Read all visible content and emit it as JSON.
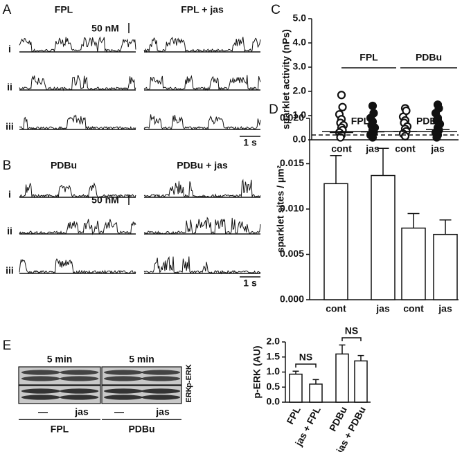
{
  "figure": {
    "traces": [
      {
        "panel": "A",
        "titles": [
          "FPL",
          "FPL + jas"
        ],
        "scale_label": "50 nM",
        "rows": [
          "i",
          "ii",
          "iii"
        ],
        "time_label": "1 s"
      },
      {
        "panel": "B",
        "titles": [
          "PDBu",
          "PDBu + jas"
        ],
        "scale_label": "50 nM",
        "rows": [
          "i",
          "ii",
          "iii"
        ],
        "time_label": "1 s"
      }
    ],
    "blot": {
      "panel": "E",
      "time_labels": [
        "5 min",
        "5 min"
      ],
      "bands": [
        "p-ERK",
        "ERK"
      ],
      "lanes": [
        "—",
        "jas",
        "—",
        "jas"
      ],
      "groups": [
        "FPL",
        "PDBu"
      ]
    }
  },
  "chart_data": [
    {
      "panel": "C",
      "type": "scatter",
      "ylabel": "sparklet activity (nPs)",
      "categories": [
        "cont",
        "jas",
        "cont",
        "jas"
      ],
      "groups": [
        "FPL",
        "PDBu"
      ],
      "filled": [
        false,
        true,
        false,
        true
      ],
      "points": [
        [
          1.85,
          1.35,
          1.05,
          0.85,
          0.7,
          0.6,
          0.5,
          0.4,
          0.3,
          0.2,
          0.1
        ],
        [
          1.4,
          1.1,
          0.9,
          0.75,
          0.6,
          0.5,
          0.4,
          0.3,
          0.2,
          0.1
        ],
        [
          1.3,
          1.2,
          0.95,
          0.8,
          0.7,
          0.55,
          0.45,
          0.35,
          0.25,
          0.15
        ],
        [
          1.45,
          1.3,
          1.1,
          0.9,
          0.8,
          0.65,
          0.5,
          0.4,
          0.3,
          0.2,
          0.1
        ]
      ],
      "means": [
        0.3,
        0.33,
        0.35,
        0.42
      ],
      "threshold": 0.2,
      "ylim": [
        0,
        5
      ],
      "yticks": [
        {
          "value": 0,
          "label": "0.0"
        },
        {
          "value": 1,
          "label": "1.0"
        },
        {
          "value": 2,
          "label": "2.0"
        },
        {
          "value": 3,
          "label": "3.0"
        },
        {
          "value": 4,
          "label": "4.0"
        },
        {
          "value": 5,
          "label": "5.0"
        }
      ]
    },
    {
      "panel": "D",
      "type": "bar",
      "ylabel": "sparklet sites / µm²",
      "categories": [
        "cont",
        "jas",
        "cont",
        "jas"
      ],
      "groups": [
        "FPL",
        "PDBu"
      ],
      "values": [
        0.0128,
        0.0137,
        0.0079,
        0.0072
      ],
      "errors": [
        0.0031,
        0.003,
        0.0016,
        0.0016
      ],
      "color": "#ffffff",
      "ylim": [
        0,
        0.02
      ],
      "yticks": [
        {
          "value": 0,
          "label": "0.000"
        },
        {
          "value": 0.005,
          "label": "0.005"
        },
        {
          "value": 0.01,
          "label": "0.010"
        },
        {
          "value": 0.015,
          "label": "0.015"
        },
        {
          "value": 0.02,
          "label": "0.020"
        }
      ]
    },
    {
      "type": "bar",
      "ylabel": "p-ERK (AU)",
      "categories": [
        "FPL",
        "jas + FPL",
        "PDBu",
        "jas + PDBu"
      ],
      "values": [
        0.93,
        0.6,
        1.6,
        1.37
      ],
      "errors": [
        0.1,
        0.15,
        0.3,
        0.18
      ],
      "annotations": [
        "NS",
        "NS"
      ],
      "color": "#ffffff",
      "ylim": [
        0,
        2
      ],
      "yticks": [
        {
          "value": 0,
          "label": "0.0"
        },
        {
          "value": 0.5,
          "label": "0.5"
        },
        {
          "value": 1,
          "label": "1.0"
        },
        {
          "value": 1.5,
          "label": "1.5"
        },
        {
          "value": 2,
          "label": "2.0"
        }
      ]
    }
  ]
}
